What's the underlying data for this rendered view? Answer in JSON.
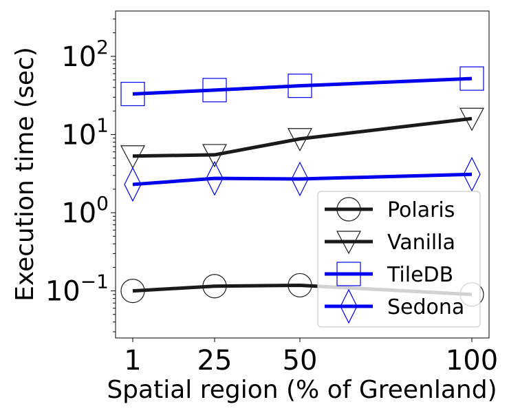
{
  "chart_data": {
    "type": "line",
    "title": "",
    "xlabel": "Spatial region (% of Greenland)",
    "ylabel": "Execution time (sec)",
    "x": [
      1,
      25,
      50,
      100
    ],
    "xticks": [
      "1",
      "25",
      "50",
      "100"
    ],
    "yscale": "log",
    "ylim": [
      0.025,
      380
    ],
    "yticks": [
      {
        "value": 0.1,
        "base": "10",
        "exp": "−1"
      },
      {
        "value": 1,
        "base": "10",
        "exp": "0"
      },
      {
        "value": 10,
        "base": "10",
        "exp": "1"
      },
      {
        "value": 100,
        "base": "10",
        "exp": "2"
      }
    ],
    "grid": false,
    "legend_position": "bottom-right",
    "series": [
      {
        "name": "Polaris",
        "values": [
          0.1,
          0.115,
          0.118,
          0.09
        ],
        "color": "#1a1a1a",
        "marker": "circle"
      },
      {
        "name": "Vanilla",
        "values": [
          5.3,
          5.5,
          8.8,
          16
        ],
        "color": "#1a1a1a",
        "marker": "triangle-down"
      },
      {
        "name": "TileDB",
        "values": [
          33,
          37,
          42,
          52
        ],
        "color": "#0000ee",
        "marker": "square"
      },
      {
        "name": "Sedona",
        "values": [
          2.3,
          2.75,
          2.7,
          3.1
        ],
        "color": "#0000ee",
        "marker": "diamond"
      }
    ]
  }
}
